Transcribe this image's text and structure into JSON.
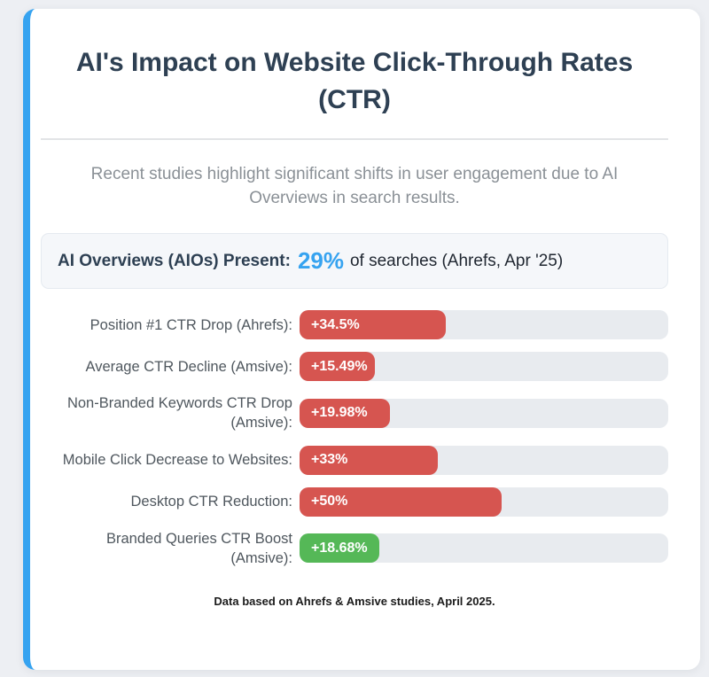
{
  "header": {
    "title": "AI's Impact on Website Click-Through Rates (CTR)",
    "subtitle": "Recent studies highlight significant shifts in user engagement due to AI Overviews in search results."
  },
  "aio_banner": {
    "label": "AI Overviews (AIOs) Present:",
    "percentage": "29%",
    "suffix": "of searches (Ahrefs, Apr '25)"
  },
  "chart_data": {
    "type": "bar",
    "orientation": "horizontal",
    "categories": [
      "Position #1 CTR Drop (Ahrefs):",
      "Average CTR Decline (Amsive):",
      "Non-Branded Keywords CTR Drop (Amsive):",
      "Mobile Click Decrease to Websites:",
      "Desktop CTR Reduction:",
      "Branded Queries CTR Boost (Amsive):"
    ],
    "values": [
      34.5,
      15.49,
      19.98,
      33,
      50,
      18.68
    ],
    "value_labels": [
      "+34.5%",
      "+15.49%",
      "+19.98%",
      "+33%",
      "+50%",
      "+18.68%"
    ],
    "bar_width_pct": [
      39.6,
      20.4,
      24.5,
      37.6,
      54.9,
      21.6
    ],
    "bar_colors": [
      "#d65550",
      "#d65550",
      "#d65550",
      "#d65550",
      "#d65550",
      "#55b857"
    ],
    "track_color": "#e8ebef",
    "legend": "none",
    "grid": false,
    "xlim": [
      0,
      100
    ]
  },
  "footer": {
    "note": "Data based on Ahrefs & Amsive studies, April 2025."
  },
  "colors": {
    "accent_blue": "#36a3f0",
    "negative_red": "#d65550",
    "positive_green": "#55b857",
    "title_navy": "#2e4053",
    "page_background": "#edeff3"
  }
}
